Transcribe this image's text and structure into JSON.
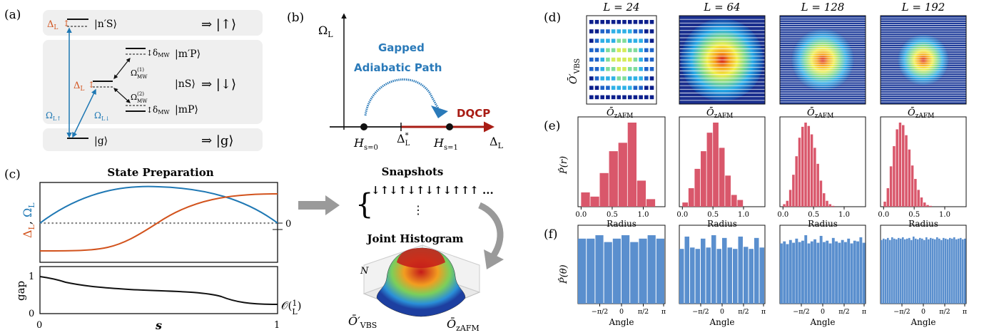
{
  "panels": {
    "a": "(a)",
    "b": "(b)",
    "c": "(c)",
    "d": "(d)",
    "e": "(e)",
    "f": "(f)"
  },
  "panel_a": {
    "row1_level": "|n′S⟩",
    "row1_arrow": "⇒ |↑⟩",
    "delta_label": "ΔL",
    "upper_p": "|m′P⟩",
    "lower_p": "|mP⟩",
    "ns_level": "|nS⟩",
    "row2_arrow": "⇒ |↓⟩",
    "delta_mw_top": "δMW",
    "delta_mw_bottom": "δMW",
    "omega_mw1": "Ω(1)MW",
    "omega_mw2": "Ω(2)MW",
    "omega_up": "ΩL↑",
    "omega_down": "ΩL↓",
    "g_level": "|g⟩",
    "row3_arrow": "⇒ |g⟩",
    "colors": {
      "delta": "#d2531d",
      "coupling": "#1f78b4",
      "box": "#efefef"
    }
  },
  "panel_b": {
    "y_axis": "ΩL",
    "x_axis": "ΔL",
    "path_label_1": "Gapped",
    "path_label_2": "Adiabatic Path",
    "dqcp": "DQCP",
    "h0": "Hs=0",
    "h1": "Hs=1",
    "critical": "Δ*L",
    "colors": {
      "path": "#2a7ab9",
      "critical": "#a81c14"
    }
  },
  "panel_c": {
    "title": "State Preparation",
    "y_label_delta": "ΔL",
    "y_label_comma": ", ",
    "y_label_omega": "ΩL",
    "zero_tick": "0",
    "gap_label": "gap",
    "gap_scale": "𝒪(1/L)",
    "x_label": "s",
    "x_ticks": [
      "0",
      "1"
    ],
    "y_ticks_gap": [
      "0",
      "1"
    ],
    "colors": {
      "delta": "#d2531d",
      "omega": "#1f78b4"
    }
  },
  "flow": {
    "snapshots_title": "Snapshots",
    "spin_string": "↓↑↓↑↓↑↓↑↓↑↑↑ ...",
    "vdots": "⋮",
    "hist_title": "Joint Histogram",
    "hist_z": "N",
    "hist_x": "Ō′VBS",
    "hist_y": "ŌzAFM"
  },
  "grid": {
    "sizes": [
      "L = 24",
      "L = 64",
      "L = 128",
      "L = 192"
    ],
    "row_d_ylabel": "Ō′VBS",
    "row_d_xlabel": "ŌzAFM",
    "row_e_ylabel": "P̂(r)",
    "row_e_xlabel": "Radius",
    "row_e_ticks": [
      "0.0",
      "0.5",
      "1.0"
    ],
    "row_f_ylabel": "P̂(θ)",
    "row_f_xlabel": "Angle",
    "row_f_ticks": [
      "−π/2",
      "0",
      "π/2",
      "π"
    ],
    "colors": {
      "radius_bar": "#d9576b",
      "angle_bar": "#5a8fce"
    }
  },
  "chart_data": [
    {
      "type": "bar",
      "panel": "e",
      "system": "L = 24",
      "x_label": "Radius",
      "y_label": "P̂(r)",
      "bin_edges": [
        0.0,
        0.15,
        0.3,
        0.45,
        0.6,
        0.75,
        0.9,
        1.05,
        1.2
      ],
      "values": [
        0.17,
        0.12,
        0.4,
        0.66,
        0.76,
        1.0,
        0.31,
        0.09
      ]
    },
    {
      "type": "bar",
      "panel": "e",
      "system": "L = 64",
      "x_label": "Radius",
      "y_label": "P̂(r)",
      "bin_edges": [
        0.0,
        0.1,
        0.2,
        0.3,
        0.4,
        0.5,
        0.6,
        0.7,
        0.8,
        0.9,
        1.0
      ],
      "values": [
        0.05,
        0.22,
        0.45,
        0.66,
        0.88,
        1.0,
        0.7,
        0.37,
        0.14,
        0.08
      ]
    },
    {
      "type": "bar",
      "panel": "e",
      "system": "L = 128",
      "x_label": "Radius",
      "y_label": "P̂(r)",
      "bin_edges": [
        0.0,
        0.05,
        0.1,
        0.15,
        0.2,
        0.25,
        0.3,
        0.35,
        0.4,
        0.45,
        0.5,
        0.55,
        0.6,
        0.65,
        0.7,
        0.75,
        0.8,
        0.85
      ],
      "values": [
        0.03,
        0.07,
        0.2,
        0.38,
        0.6,
        0.82,
        0.95,
        1.0,
        0.96,
        0.86,
        0.7,
        0.51,
        0.31,
        0.16,
        0.07,
        0.03,
        0.01
      ]
    },
    {
      "type": "bar",
      "panel": "e",
      "system": "L = 192",
      "x_label": "Radius",
      "y_label": "P̂(r)",
      "bin_edges": [
        0.0,
        0.05,
        0.1,
        0.15,
        0.2,
        0.25,
        0.3,
        0.35,
        0.4,
        0.45,
        0.5,
        0.55,
        0.6,
        0.65,
        0.7,
        0.75,
        0.8
      ],
      "values": [
        0.06,
        0.22,
        0.48,
        0.72,
        0.92,
        1.0,
        0.97,
        0.85,
        0.68,
        0.49,
        0.33,
        0.2,
        0.11,
        0.05,
        0.02,
        0.01
      ]
    },
    {
      "type": "bar",
      "panel": "f",
      "system": "L = 24",
      "x_label": "Angle",
      "y_label": "P̂(θ)",
      "x_range": [
        -3.1416,
        3.1416
      ],
      "values": [
        0.95,
        0.95,
        1.0,
        0.9,
        0.95,
        1.0,
        0.9,
        0.95,
        1.0,
        0.95
      ]
    },
    {
      "type": "bar",
      "panel": "f",
      "system": "L = 64",
      "x_label": "Angle",
      "y_label": "P̂(θ)",
      "x_range": [
        -3.1416,
        3.1416
      ],
      "values": [
        0.8,
        0.98,
        0.82,
        0.8,
        0.95,
        0.82,
        1.0,
        0.8,
        0.96,
        0.82,
        0.8,
        0.98,
        0.83,
        0.8,
        0.96,
        0.82
      ]
    },
    {
      "type": "bar",
      "panel": "f",
      "system": "L = 128",
      "x_label": "Angle",
      "y_label": "P̂(θ)",
      "x_range": [
        -3.1416,
        3.1416
      ],
      "values": [
        0.88,
        0.91,
        0.87,
        0.93,
        0.89,
        0.95,
        0.9,
        0.92,
        1.0,
        0.88,
        0.91,
        0.94,
        0.89,
        0.99,
        0.9,
        0.92,
        0.88,
        0.96,
        0.91,
        0.89,
        0.93,
        0.9,
        0.95,
        0.88,
        0.92,
        0.91,
        0.97,
        0.89
      ]
    },
    {
      "type": "bar",
      "panel": "f",
      "system": "L = 192",
      "x_label": "Angle",
      "y_label": "P̂(θ)",
      "x_range": [
        -3.1416,
        3.1416
      ],
      "values": [
        0.93,
        0.95,
        0.94,
        0.96,
        0.93,
        0.97,
        0.95,
        0.94,
        0.96,
        0.95,
        0.97,
        0.94,
        0.95,
        0.96,
        0.93,
        0.98,
        0.95,
        0.94,
        0.96,
        0.95,
        0.93,
        0.97,
        0.94,
        0.96,
        0.95,
        0.94,
        0.97,
        0.95,
        0.93,
        0.96,
        0.95,
        0.94,
        0.96,
        0.95,
        0.97,
        0.94,
        0.95,
        0.96,
        0.94,
        0.95
      ]
    },
    {
      "type": "line",
      "panel": "c",
      "title": "State Preparation",
      "x_label": "s",
      "x_range": [
        0,
        1
      ],
      "series": [
        {
          "name": "ΔL",
          "x": [
            0,
            0.1,
            0.2,
            0.3,
            0.4,
            0.5,
            0.6,
            0.7,
            0.8,
            0.9,
            1.0
          ],
          "y": [
            -0.9,
            -0.88,
            -0.8,
            -0.62,
            -0.32,
            0.05,
            0.42,
            0.72,
            0.9,
            0.98,
            1.0
          ]
        },
        {
          "name": "ΩL",
          "x": [
            0,
            0.1,
            0.2,
            0.3,
            0.4,
            0.5,
            0.6,
            0.7,
            0.8,
            0.9,
            1.0
          ],
          "y": [
            0.0,
            0.38,
            0.68,
            0.9,
            1.0,
            0.99,
            0.9,
            0.72,
            0.46,
            0.2,
            0.0
          ]
        },
        {
          "name": "gap",
          "x": [
            0,
            0.05,
            0.1,
            0.2,
            0.3,
            0.4,
            0.5,
            0.6,
            0.7,
            0.8,
            0.9,
            1.0
          ],
          "y": [
            1.0,
            0.9,
            0.82,
            0.74,
            0.7,
            0.64,
            0.6,
            0.56,
            0.45,
            0.3,
            0.26,
            0.25
          ]
        }
      ]
    }
  ]
}
